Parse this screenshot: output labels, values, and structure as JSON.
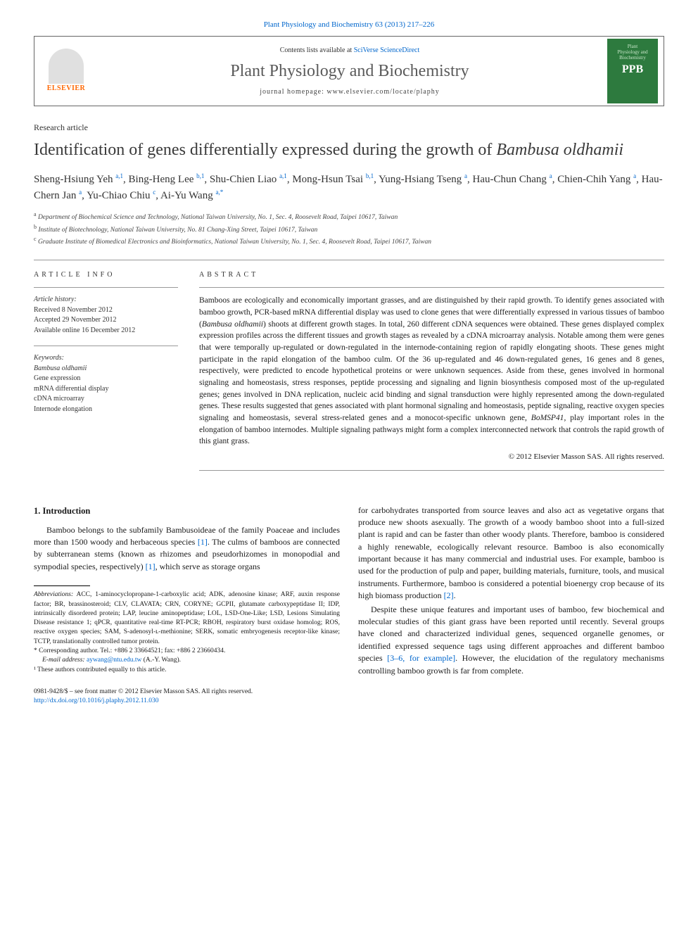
{
  "citation": "Plant Physiology and Biochemistry 63 (2013) 217–226",
  "header": {
    "contents_prefix": "Contents lists available at ",
    "contents_link": "SciVerse ScienceDirect",
    "journal_name": "Plant Physiology and Biochemistry",
    "homepage_prefix": "journal homepage: ",
    "homepage_url": "www.elsevier.com/locate/plaphy",
    "elsevier": "ELSEVIER",
    "cover_line1": "Plant",
    "cover_line2": "Physiology and",
    "cover_line3": "Biochemistry",
    "ppb": "PPB"
  },
  "article_type": "Research article",
  "title_pre": "Identification of genes differentially expressed during the growth of ",
  "title_em": "Bambusa oldhamii",
  "authors": "Sheng-Hsiung Yeh",
  "authors_full_html": "Sheng-Hsiung Yeh <sup>a,1</sup>, Bing-Heng Lee <sup>b,1</sup>, Shu-Chien Liao <sup>a,1</sup>, Mong-Hsun Tsai <sup>b,1</sup>, Yung-Hsiang Tseng <sup>a</sup>, Hau-Chun Chang <sup>a</sup>, Chien-Chih Yang <sup>a</sup>, Hau-Chern Jan <sup>a</sup>, Yu-Chiao Chiu <sup>c</sup>, Ai-Yu Wang <sup>a,*</sup>",
  "affiliations": {
    "a": "Department of Biochemical Science and Technology, National Taiwan University, No. 1, Sec. 4, Roosevelt Road, Taipei 10617, Taiwan",
    "b": "Institute of Biotechnology, National Taiwan University, No. 81 Chang-Xing Street, Taipei 10617, Taiwan",
    "c": "Graduate Institute of Biomedical Electronics and Bioinformatics, National Taiwan University, No. 1, Sec. 4, Roosevelt Road, Taipei 10617, Taiwan"
  },
  "info": {
    "heading": "ARTICLE INFO",
    "history_label": "Article history:",
    "received": "Received 8 November 2012",
    "accepted": "Accepted 29 November 2012",
    "online": "Available online 16 December 2012",
    "keywords_label": "Keywords:",
    "keywords": [
      "Bambusa oldhamii",
      "Gene expression",
      "mRNA differential display",
      "cDNA microarray",
      "Internode elongation"
    ]
  },
  "abstract": {
    "heading": "ABSTRACT",
    "text": "Bamboos are ecologically and economically important grasses, and are distinguished by their rapid growth. To identify genes associated with bamboo growth, PCR-based mRNA differential display was used to clone genes that were differentially expressed in various tissues of bamboo (Bambusa oldhamii) shoots at different growth stages. In total, 260 different cDNA sequences were obtained. These genes displayed complex expression profiles across the different tissues and growth stages as revealed by a cDNA microarray analysis. Notable among them were genes that were temporally up-regulated or down-regulated in the internode-containing region of rapidly elongating shoots. These genes might participate in the rapid elongation of the bamboo culm. Of the 36 up-regulated and 46 down-regulated genes, 16 genes and 8 genes, respectively, were predicted to encode hypothetical proteins or were unknown sequences. Aside from these, genes involved in hormonal signaling and homeostasis, stress responses, peptide processing and signaling and lignin biosynthesis composed most of the up-regulated genes; genes involved in DNA replication, nucleic acid binding and signal transduction were highly represented among the down-regulated genes. These results suggested that genes associated with plant hormonal signaling and homeostasis, peptide signaling, reactive oxygen species signaling and homeostasis, several stress-related genes and a monocot-specific unknown gene, BoMSP41, play important roles in the elongation of bamboo internodes. Multiple signaling pathways might form a complex interconnected network that controls the rapid growth of this giant grass.",
    "copyright": "© 2012 Elsevier Masson SAS. All rights reserved."
  },
  "section1_heading": "1. Introduction",
  "body": {
    "p1": "Bamboo belongs to the subfamily Bambusoideae of the family Poaceae and includes more than 1500 woody and herbaceous species [1]. The culms of bamboos are connected by subterranean stems (known as rhizomes and pseudorhizomes in monopodial and sympodial species, respectively) [1], which serve as storage organs",
    "p2_col2": "for carbohydrates transported from source leaves and also act as vegetative organs that produce new shoots asexually. The growth of a woody bamboo shoot into a full-sized plant is rapid and can be faster than other woody plants. Therefore, bamboo is considered a highly renewable, ecologically relevant resource. Bamboo is also economically important because it has many commercial and industrial uses. For example, bamboo is used for the production of pulp and paper, building materials, furniture, tools, and musical instruments. Furthermore, bamboo is considered a potential bioenergy crop because of its high biomass production [2].",
    "p3_col2": "Despite these unique features and important uses of bamboo, few biochemical and molecular studies of this giant grass have been reported until recently. Several groups have cloned and characterized individual genes, sequenced organelle genomes, or identified expressed sequence tags using different approaches and different bamboo species [3–6, for example]. However, the elucidation of the regulatory mechanisms controlling bamboo growth is far from complete."
  },
  "footnotes": {
    "abbrev_label": "Abbreviations:",
    "abbrev_text": "ACC, 1-aminocyclopropane-1-carboxylic acid; ADK, adenosine kinase; ARF, auxin response factor; BR, brassinosteroid; CLV, CLAVATA; CRN, CORYNE; GCPII, glutamate carboxypeptidase II; IDP, intrinsically disordered protein; LAP, leucine aminopeptidase; LOL, LSD-One-Like; LSD, Lesions Simulating Disease resistance 1; qPCR, quantitative real-time RT-PCR; RBOH, respiratory burst oxidase homolog; ROS, reactive oxygen species; SAM, S-adenosyl-ʟ-methionine; SERK, somatic embryogenesis receptor-like kinase; TCTP, translationally controlled tumor protein.",
    "corr_label": "* Corresponding author. Tel.: +886 2 33664521; fax: +886 2 23660434.",
    "email_label": "E-mail address:",
    "email": "aywang@ntu.edu.tw",
    "email_who": "(A.-Y. Wang).",
    "contrib": "¹ These authors contributed equally to this article."
  },
  "footer": {
    "issn": "0981-9428/$ – see front matter © 2012 Elsevier Masson SAS. All rights reserved.",
    "doi": "http://dx.doi.org/10.1016/j.plaphy.2012.11.030"
  }
}
